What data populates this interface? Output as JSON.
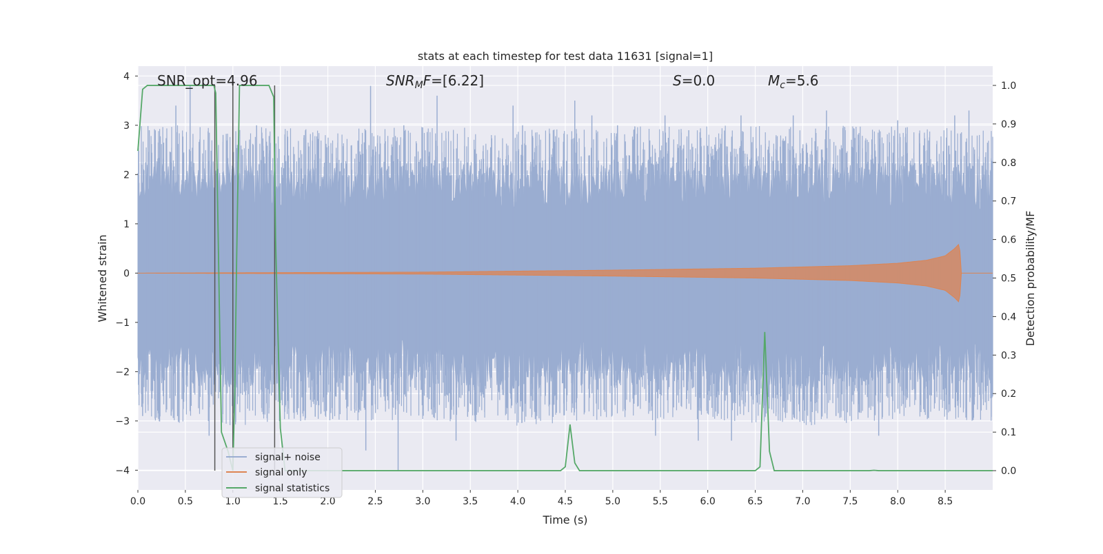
{
  "chart_data": {
    "type": "line",
    "title": "stats at each timestep for test data 11631 [signal=1]",
    "xlabel": "Time (s)",
    "ylabel_left": "Whitened strain",
    "ylabel_right": "Detection probability/MF",
    "xlim": [
      0.0,
      9.0
    ],
    "ylim_left": [
      -4.4,
      4.2
    ],
    "ylim_right": [
      -0.05,
      1.05
    ],
    "x_ticks": [
      "0.0",
      "0.5",
      "1.0",
      "1.5",
      "2.0",
      "2.5",
      "3.0",
      "3.5",
      "4.0",
      "4.5",
      "5.0",
      "5.5",
      "6.0",
      "6.5",
      "7.0",
      "7.5",
      "8.0",
      "8.5"
    ],
    "x_tick_values": [
      0.0,
      0.5,
      1.0,
      1.5,
      2.0,
      2.5,
      3.0,
      3.5,
      4.0,
      4.5,
      5.0,
      5.5,
      6.0,
      6.5,
      7.0,
      7.5,
      8.0,
      8.5
    ],
    "y_left_ticks": [
      "4",
      "3",
      "2",
      "1",
      "0",
      "−1",
      "−2",
      "−3",
      "−4"
    ],
    "y_left_tick_values": [
      4,
      3,
      2,
      1,
      0,
      -1,
      -2,
      -3,
      -4
    ],
    "y_right_ticks": [
      "1.0",
      "0.9",
      "0.8",
      "0.7",
      "0.6",
      "0.5",
      "0.4",
      "0.3",
      "0.2",
      "0.1",
      "0.0"
    ],
    "y_right_tick_values": [
      1.0,
      0.9,
      0.8,
      0.7,
      0.6,
      0.5,
      0.4,
      0.3,
      0.2,
      0.1,
      0.0
    ],
    "grid": true,
    "legend_placement": "lower-left",
    "annotations": {
      "snr_opt": "SNR_opt=4.96",
      "snr_mf": "SNR",
      "snr_mf_sub": "M",
      "snr_mf_rest": "F=[6.22]",
      "s_var": "S",
      "s_rest": "=0.0",
      "mc_var": "M",
      "mc_sub": "c",
      "mc_rest": "=5.6"
    },
    "vertical_markers_x": [
      0.81,
      1.0,
      1.44
    ],
    "series": [
      {
        "name": "signal+ noise",
        "color": "#9aadd1",
        "axis": "left",
        "envelope": {
          "x": [
            0.0,
            1.0,
            2.0,
            3.0,
            4.0,
            5.0,
            6.0,
            7.0,
            8.0,
            9.0
          ],
          "upper": [
            1.8,
            1.8,
            1.7,
            1.8,
            1.7,
            1.8,
            1.8,
            1.8,
            1.8,
            1.7
          ],
          "lower": [
            -1.8,
            -1.9,
            -1.8,
            -1.8,
            -1.9,
            -1.8,
            -1.8,
            -1.9,
            -1.8,
            -1.8
          ],
          "peaks_up": [
            [
              0.12,
              2.9
            ],
            [
              0.4,
              3.4
            ],
            [
              0.55,
              3.8
            ],
            [
              1.25,
              3.0
            ],
            [
              1.75,
              2.8
            ],
            [
              2.45,
              3.8
            ],
            [
              2.8,
              3.0
            ],
            [
              3.15,
              3.6
            ],
            [
              3.95,
              3.4
            ],
            [
              4.05,
              3.0
            ],
            [
              4.6,
              3.5
            ],
            [
              4.78,
              3.2
            ],
            [
              5.05,
              3.0
            ],
            [
              5.55,
              3.2
            ],
            [
              5.8,
              2.9
            ],
            [
              6.35,
              3.2
            ],
            [
              6.9,
              3.2
            ],
            [
              7.25,
              3.3
            ],
            [
              8.0,
              3.1
            ],
            [
              8.6,
              3.2
            ],
            [
              8.75,
              3.3
            ]
          ],
          "peaks_down": [
            [
              0.05,
              -2.9
            ],
            [
              0.55,
              -2.8
            ],
            [
              0.75,
              -3.3
            ],
            [
              2.4,
              -3.6
            ],
            [
              2.74,
              -4.0
            ],
            [
              3.35,
              -3.4
            ],
            [
              3.55,
              -3.0
            ],
            [
              4.2,
              -2.9
            ],
            [
              5.45,
              -3.3
            ],
            [
              5.9,
              -3.4
            ],
            [
              6.25,
              -3.4
            ],
            [
              7.0,
              -3.0
            ],
            [
              7.35,
              -2.9
            ],
            [
              7.8,
              -3.3
            ],
            [
              8.55,
              -2.8
            ]
          ]
        }
      },
      {
        "name": "signal only",
        "color": "#dd8452",
        "axis": "left",
        "envelope": {
          "x": [
            0.0,
            3.0,
            5.0,
            6.5,
            7.5,
            8.0,
            8.3,
            8.5,
            8.6,
            8.65,
            8.67,
            9.0
          ],
          "amplitude": [
            0.0,
            0.02,
            0.06,
            0.1,
            0.15,
            0.2,
            0.26,
            0.35,
            0.5,
            0.6,
            0.0,
            0.0
          ]
        }
      },
      {
        "name": "signal statistics",
        "color": "#55a868",
        "axis": "right",
        "x": [
          0.0,
          0.05,
          0.1,
          0.3,
          0.8,
          0.82,
          0.88,
          0.95,
          1.0,
          1.02,
          1.04,
          1.07,
          1.1,
          1.3,
          1.38,
          1.43,
          1.45,
          1.5,
          1.55,
          2.0,
          4.0,
          4.45,
          4.5,
          4.55,
          4.6,
          4.65,
          5.0,
          6.5,
          6.55,
          6.6,
          6.65,
          6.7,
          7.0,
          7.7,
          7.75,
          7.8,
          9.0
        ],
        "values": [
          0.83,
          0.99,
          1.0,
          1.0,
          1.0,
          0.98,
          0.1,
          0.05,
          0.0,
          0.2,
          0.55,
          1.0,
          1.0,
          1.0,
          1.0,
          0.97,
          0.6,
          0.11,
          0.0,
          0.0,
          0.0,
          0.0,
          0.01,
          0.12,
          0.02,
          0.0,
          0.0,
          0.0,
          0.01,
          0.36,
          0.05,
          0.0,
          0.0,
          0.0,
          0.001,
          0.0,
          0.0
        ]
      }
    ]
  }
}
